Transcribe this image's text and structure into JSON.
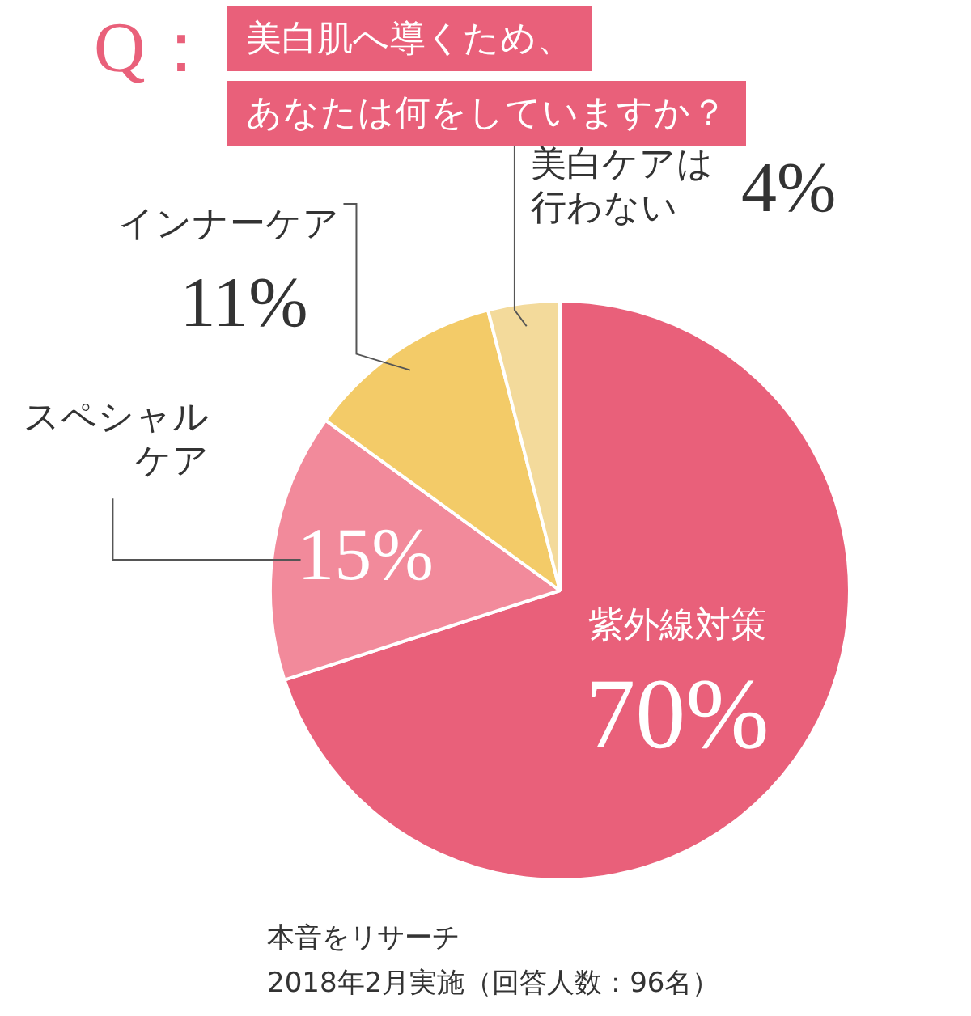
{
  "chart_data": {
    "type": "pie",
    "title": "美白肌へ導くため、あなたは何をしていますか？",
    "categories": [
      "紫外線対策",
      "スペシャルケア",
      "インナーケア",
      "美白ケアは行わない"
    ],
    "values": [
      70,
      15,
      11,
      4
    ],
    "value_labels": [
      "70%",
      "15%",
      "11%",
      "4%"
    ],
    "colors": [
      "#e9607a",
      "#f28a9b",
      "#f3cb68",
      "#f3da9b"
    ],
    "legend": false,
    "annotations": [
      "Q：",
      "本音をリサーチ",
      "2018年2月実施（回答人数：96名）"
    ]
  }
}
